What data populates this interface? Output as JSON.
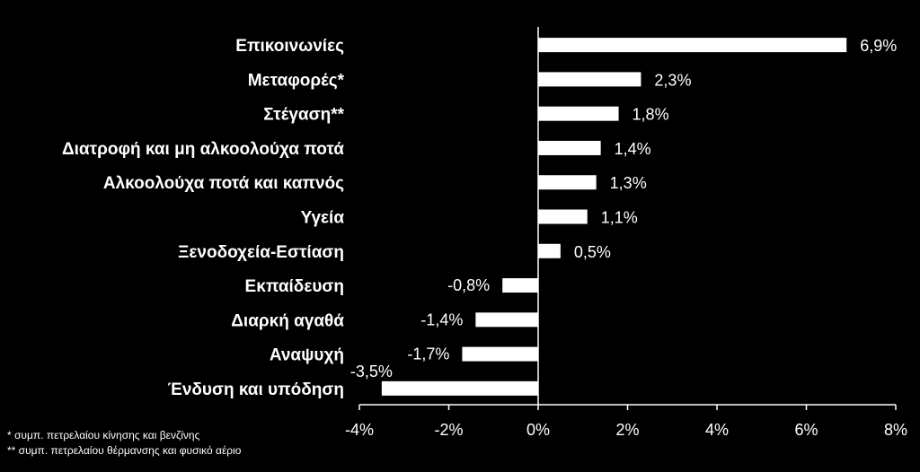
{
  "chart_data": {
    "type": "bar",
    "orientation": "horizontal",
    "categories": [
      "Επικοινωνίες",
      "Μεταφορές*",
      "Στέγαση**",
      "Διατροφή και μη αλκοολούχα ποτά",
      "Αλκοολούχα ποτά και καπνός",
      "Υγεία",
      "Ξενοδοχεία-Εστίαση",
      "Εκπαίδευση",
      "Διαρκή αγαθά",
      "Αναψυχή",
      "Ένδυση και υπόδηση"
    ],
    "values": [
      6.9,
      2.3,
      1.8,
      1.4,
      1.3,
      1.1,
      0.5,
      -0.8,
      -1.4,
      -1.7,
      -3.5
    ],
    "data_labels": [
      "6,9%",
      "2,3%",
      "1,8%",
      "1,4%",
      "1,3%",
      "1,1%",
      "0,5%",
      "-0,8%",
      "-1,4%",
      "-1,7%",
      "-3,5%"
    ],
    "xlim": [
      -4,
      8
    ],
    "xticks": [
      -4,
      -2,
      0,
      2,
      4,
      6,
      8
    ],
    "xtick_labels": [
      "-4%",
      "-2%",
      "0%",
      "2%",
      "4%",
      "6%",
      "8%"
    ],
    "grid": false,
    "bar_color": "#ffffff",
    "background": "#000000"
  },
  "footnotes": [
    "* συμπ. πετρελαίου κίνησης και βενζίνης",
    "** συμπ. πετρελαίου θέρμανσης και φυσικό αέριο"
  ]
}
